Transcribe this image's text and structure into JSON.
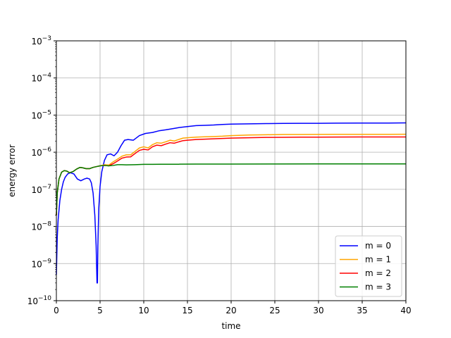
{
  "chart_data": {
    "type": "line",
    "title": "",
    "xlabel": "time",
    "ylabel": "energy error",
    "xlim": [
      0,
      40
    ],
    "ylim": [
      1e-10,
      0.001
    ],
    "yscale": "log",
    "grid": true,
    "legend_position": "lower-right",
    "x_ticks": [
      0,
      5,
      10,
      15,
      20,
      25,
      30,
      35,
      40
    ],
    "x_tick_labels": [
      "0",
      "5",
      "10",
      "15",
      "20",
      "25",
      "30",
      "35",
      "40"
    ],
    "y_ticks": [
      1e-10,
      1e-09,
      1e-08,
      1e-07,
      1e-06,
      1e-05,
      0.0001,
      0.001
    ],
    "y_tick_labels": [
      {
        "base": "10",
        "exp": "−10"
      },
      {
        "base": "10",
        "exp": "−9"
      },
      {
        "base": "10",
        "exp": "−8"
      },
      {
        "base": "10",
        "exp": "−7"
      },
      {
        "base": "10",
        "exp": "−6"
      },
      {
        "base": "10",
        "exp": "−5"
      },
      {
        "base": "10",
        "exp": "−4"
      },
      {
        "base": "10",
        "exp": "−3"
      }
    ],
    "series": [
      {
        "name": "m = 0",
        "color": "#0000ff",
        "x": [
          0,
          0.1,
          0.2,
          0.4,
          0.6,
          0.8,
          1.0,
          1.3,
          1.6,
          2.0,
          2.4,
          2.8,
          3.2,
          3.5,
          3.8,
          4.0,
          4.2,
          4.4,
          4.55,
          4.65,
          4.7,
          4.75,
          4.85,
          5.0,
          5.2,
          5.5,
          5.8,
          6.2,
          6.6,
          7.0,
          7.4,
          7.8,
          8.2,
          8.8,
          9.5,
          10.2,
          11.0,
          11.8,
          12.5,
          13.3,
          14.0,
          15.0,
          16.0,
          17.0,
          18.0,
          19.0,
          20.0,
          22.0,
          24.0,
          26.0,
          28.0,
          30.0,
          32.0,
          35.0,
          38.0,
          40.0
        ],
        "y": [
          5e-10,
          5e-09,
          1.5e-08,
          5e-08,
          1e-07,
          1.6e-07,
          2.1e-07,
          2.6e-07,
          2.8e-07,
          2.6e-07,
          1.9e-07,
          1.7e-07,
          1.9e-07,
          2e-07,
          1.9e-07,
          1.5e-07,
          8e-08,
          2e-08,
          3e-09,
          3e-10,
          3e-10,
          3e-09,
          3e-08,
          1.2e-07,
          3e-07,
          6e-07,
          8.5e-07,
          9e-07,
          8e-07,
          1e-06,
          1.5e-06,
          2.1e-06,
          2.2e-06,
          2.1e-06,
          2.8e-06,
          3.2e-06,
          3.4e-06,
          3.8e-06,
          4e-06,
          4.3e-06,
          4.6e-06,
          4.9e-06,
          5.2e-06,
          5.3e-06,
          5.4e-06,
          5.6e-06,
          5.7e-06,
          5.8e-06,
          5.9e-06,
          5.95e-06,
          6e-06,
          6e-06,
          6.05e-06,
          6.1e-06,
          6.1e-06,
          6.15e-06
        ]
      },
      {
        "name": "m = 1",
        "color": "#ffa500",
        "x": [
          0,
          0.1,
          0.3,
          0.6,
          0.9,
          1.2,
          1.5,
          1.9,
          2.3,
          2.7,
          3.0,
          3.4,
          3.8,
          4.2,
          4.6,
          5.0,
          5.5,
          6.0,
          6.5,
          7.0,
          7.5,
          8.0,
          8.5,
          9.0,
          9.5,
          10.0,
          10.5,
          11.0,
          11.5,
          12.0,
          12.5,
          13.0,
          13.5,
          14.0,
          14.5,
          15.0,
          16.0,
          17.0,
          18.0,
          19.0,
          20.0,
          22.0,
          24.0,
          26.0,
          28.0,
          30.0,
          32.0,
          35.0,
          38.0,
          40.0
        ],
        "y": [
          2e-08,
          8e-08,
          1.9e-07,
          2.9e-07,
          3.2e-07,
          3.1e-07,
          2.8e-07,
          3e-07,
          3.5e-07,
          3.9e-07,
          3.8e-07,
          3.6e-07,
          3.6e-07,
          3.9e-07,
          4.1e-07,
          4.3e-07,
          4.6e-07,
          4.5e-07,
          5.5e-07,
          6.5e-07,
          7.8e-07,
          8.5e-07,
          8.5e-07,
          1.05e-06,
          1.3e-06,
          1.4e-06,
          1.3e-06,
          1.6e-06,
          1.8e-06,
          1.75e-06,
          1.9e-06,
          2.1e-06,
          2e-06,
          2.2e-06,
          2.4e-06,
          2.45e-06,
          2.55e-06,
          2.6e-06,
          2.65e-06,
          2.7e-06,
          2.8e-06,
          2.9e-06,
          2.95e-06,
          3e-06,
          3e-06,
          3.02e-06,
          3.03e-06,
          3.03e-06,
          3.04e-06,
          3.05e-06
        ]
      },
      {
        "name": "m = 2",
        "color": "#ff0000",
        "x": [
          0,
          0.1,
          0.3,
          0.6,
          0.9,
          1.2,
          1.5,
          1.9,
          2.3,
          2.7,
          3.0,
          3.4,
          3.8,
          4.2,
          4.6,
          5.0,
          5.5,
          6.0,
          6.5,
          7.0,
          7.5,
          8.0,
          8.5,
          9.0,
          9.5,
          10.0,
          10.5,
          11.0,
          11.5,
          12.0,
          12.5,
          13.0,
          13.5,
          14.0,
          14.5,
          15.0,
          16.0,
          17.0,
          18.0,
          19.0,
          20.0,
          22.0,
          24.0,
          26.0,
          28.0,
          30.0,
          32.0,
          35.0,
          38.0,
          40.0
        ],
        "y": [
          2e-08,
          8e-08,
          1.9e-07,
          2.9e-07,
          3.2e-07,
          3.1e-07,
          2.8e-07,
          3e-07,
          3.5e-07,
          3.9e-07,
          3.8e-07,
          3.6e-07,
          3.6e-07,
          3.9e-07,
          4.1e-07,
          4.3e-07,
          4.4e-07,
          4.3e-07,
          4.9e-07,
          5.8e-07,
          6.9e-07,
          7.4e-07,
          7.5e-07,
          9.2e-07,
          1.12e-06,
          1.2e-06,
          1.15e-06,
          1.4e-06,
          1.55e-06,
          1.5e-06,
          1.65e-06,
          1.8e-06,
          1.75e-06,
          1.9e-06,
          2.05e-06,
          2.1e-06,
          2.2e-06,
          2.25e-06,
          2.3e-06,
          2.35e-06,
          2.4e-06,
          2.45e-06,
          2.5e-06,
          2.52e-06,
          2.54e-06,
          2.55e-06,
          2.56e-06,
          2.57e-06,
          2.58e-06,
          2.58e-06
        ]
      },
      {
        "name": "m = 3",
        "color": "#008000",
        "x": [
          0,
          0.1,
          0.3,
          0.6,
          0.9,
          1.2,
          1.5,
          1.9,
          2.3,
          2.7,
          3.0,
          3.4,
          3.8,
          4.2,
          4.6,
          5.0,
          5.5,
          6.0,
          6.5,
          7.0,
          7.5,
          8.0,
          9.0,
          10.0,
          11.0,
          12.0,
          14.0,
          16.0,
          18.0,
          20.0,
          25.0,
          30.0,
          35.0,
          40.0
        ],
        "y": [
          2e-08,
          8e-08,
          1.9e-07,
          2.9e-07,
          3.2e-07,
          3.1e-07,
          2.8e-07,
          3e-07,
          3.5e-07,
          3.9e-07,
          3.8e-07,
          3.6e-07,
          3.6e-07,
          3.9e-07,
          4.1e-07,
          4.3e-07,
          4.4e-07,
          4.3e-07,
          4.4e-07,
          4.6e-07,
          4.6e-07,
          4.55e-07,
          4.6e-07,
          4.7e-07,
          4.7e-07,
          4.75e-07,
          4.75e-07,
          4.8e-07,
          4.8e-07,
          4.8e-07,
          4.82e-07,
          4.83e-07,
          4.84e-07,
          4.85e-07
        ]
      }
    ]
  }
}
